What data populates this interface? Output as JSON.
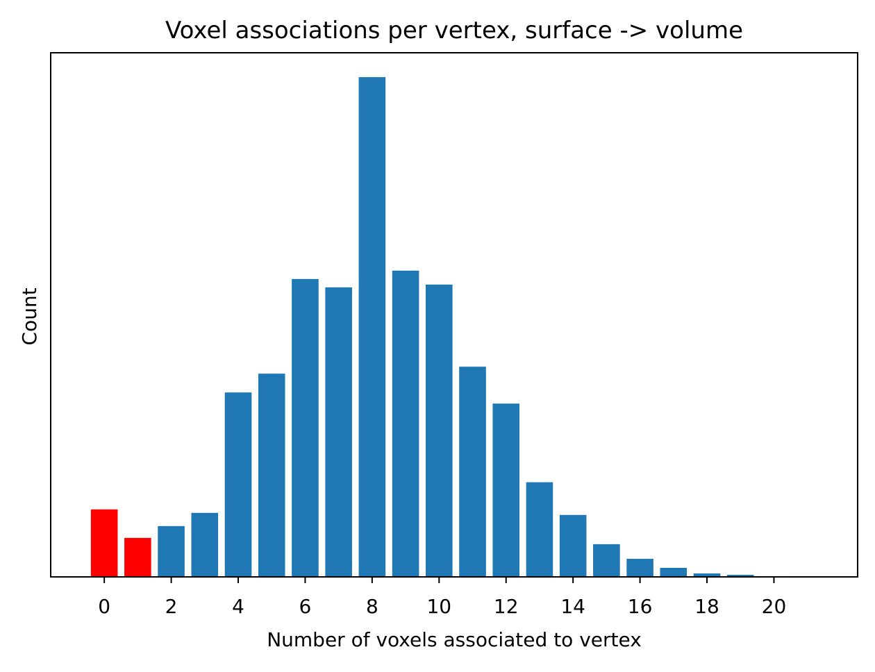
{
  "chart_data": {
    "type": "bar",
    "title": "Voxel associations per vertex, surface -> volume",
    "xlabel": "Number of voxels associated to vertex",
    "ylabel": "Count",
    "x": [
      0,
      1,
      2,
      3,
      4,
      5,
      6,
      7,
      8,
      9,
      10,
      11,
      12,
      13,
      14,
      15,
      16,
      17,
      18,
      19,
      20
    ],
    "values": [
      97,
      56,
      73,
      92,
      265,
      292,
      428,
      416,
      718,
      440,
      420,
      302,
      249,
      136,
      89,
      47,
      26,
      13,
      5,
      3,
      1
    ],
    "bar_colors": [
      "#ff0000",
      "#ff0000",
      "#1f77b4",
      "#1f77b4",
      "#1f77b4",
      "#1f77b4",
      "#1f77b4",
      "#1f77b4",
      "#1f77b4",
      "#1f77b4",
      "#1f77b4",
      "#1f77b4",
      "#1f77b4",
      "#1f77b4",
      "#1f77b4",
      "#1f77b4",
      "#1f77b4",
      "#1f77b4",
      "#1f77b4",
      "#1f77b4",
      "#1f77b4"
    ],
    "highlight_color": "#ff0000",
    "bar_color": "#1f77b4",
    "xticks": [
      0,
      2,
      4,
      6,
      8,
      10,
      12,
      14,
      16,
      18,
      20
    ],
    "xlim": [
      -1.6,
      22.5
    ],
    "ylim": [
      0,
      753
    ],
    "y_tick_labels_shown": false,
    "grid": false,
    "legend": "none"
  }
}
